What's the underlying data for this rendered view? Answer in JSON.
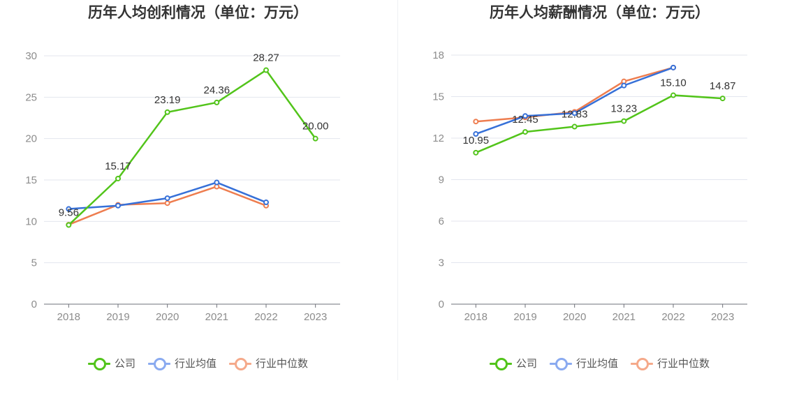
{
  "chart_data": [
    {
      "type": "line",
      "title": "历年人均创利情况（单位：万元）",
      "categories": [
        "2018",
        "2019",
        "2020",
        "2021",
        "2022",
        "2023"
      ],
      "ylim": [
        0,
        30
      ],
      "yticks": [
        0,
        5,
        10,
        15,
        20,
        25,
        30
      ],
      "grid": true,
      "legend_position": "bottom",
      "series": [
        {
          "name": "公司",
          "color": "#52c41a",
          "values": [
            9.56,
            15.17,
            23.19,
            24.36,
            28.27,
            20.0
          ],
          "labels": [
            "9.56",
            "15.17",
            "23.19",
            "24.36",
            "28.27",
            "20.00"
          ]
        },
        {
          "name": "行业均值",
          "color": "#3670d8",
          "values": [
            11.5,
            11.9,
            12.8,
            14.7,
            12.3,
            null
          ]
        },
        {
          "name": "行业中位数",
          "color": "#ee7d4f",
          "values": [
            9.6,
            12.0,
            12.2,
            14.2,
            11.9,
            null
          ]
        }
      ]
    },
    {
      "type": "line",
      "title": "历年人均薪酬情况（单位：万元）",
      "categories": [
        "2018",
        "2019",
        "2020",
        "2021",
        "2022",
        "2023"
      ],
      "ylim": [
        0,
        18
      ],
      "yticks": [
        0,
        3,
        6,
        9,
        12,
        15,
        18
      ],
      "grid": true,
      "legend_position": "bottom",
      "series": [
        {
          "name": "公司",
          "color": "#52c41a",
          "values": [
            10.95,
            12.45,
            12.83,
            13.23,
            15.1,
            14.87
          ],
          "labels": [
            "10.95",
            "12.45",
            "12.83",
            "13.23",
            "15.10",
            "14.87"
          ]
        },
        {
          "name": "行业均值",
          "color": "#3670d8",
          "values": [
            12.3,
            13.6,
            13.8,
            15.8,
            17.1,
            null
          ]
        },
        {
          "name": "行业中位数",
          "color": "#ee7d4f",
          "values": [
            13.2,
            13.5,
            13.9,
            16.1,
            17.1,
            null
          ]
        }
      ]
    }
  ],
  "legend": {
    "items": [
      {
        "label": "公司",
        "color": "#52c41a"
      },
      {
        "label": "行业均值",
        "color": "#8aaaf0"
      },
      {
        "label": "行业中位数",
        "color": "#f5a98a"
      }
    ]
  }
}
